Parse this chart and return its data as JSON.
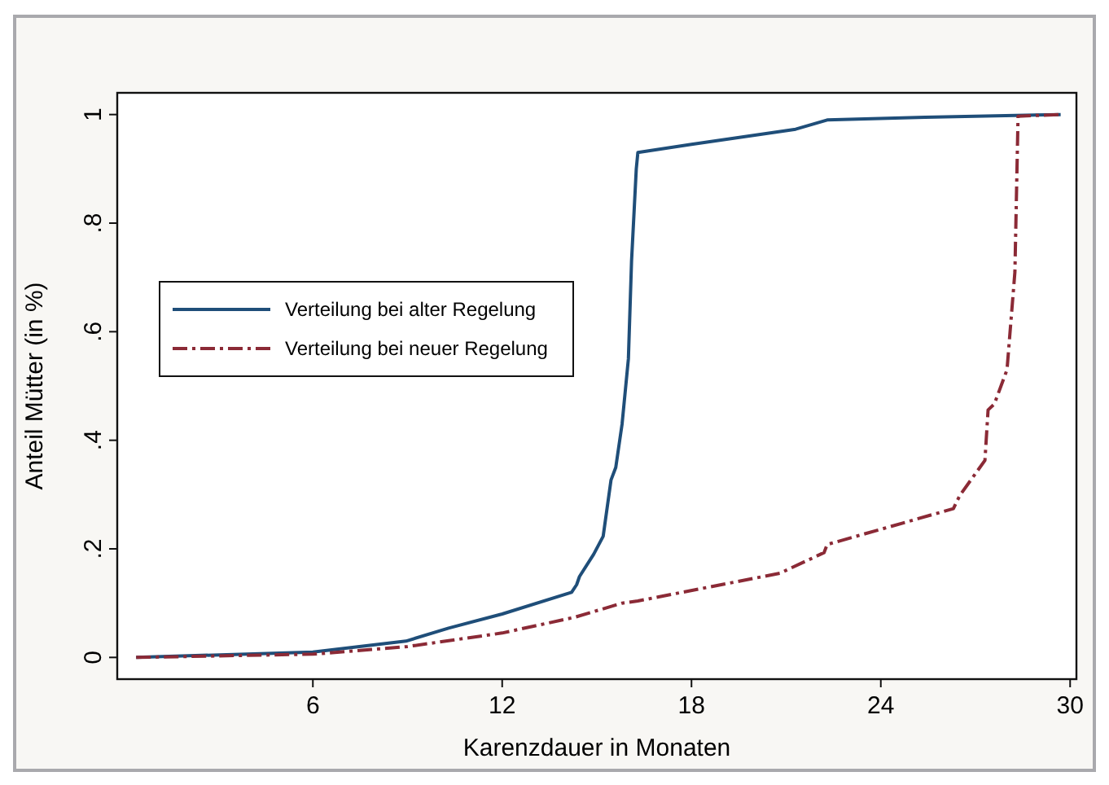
{
  "chart_data": {
    "type": "line",
    "xlabel": "Karenzdauer in Monaten",
    "ylabel": "Anteil Mütter (in %)",
    "xlim": [
      -0.2,
      30.2
    ],
    "xticks": [
      6,
      12,
      18,
      24,
      30
    ],
    "ylim": [
      -0.04,
      1.04
    ],
    "yticks": [
      0,
      {
        "value": 0.2,
        "label": ".2"
      },
      {
        "value": 0.4,
        "label": ".4"
      },
      {
        "value": 0.6,
        "label": ".6"
      },
      {
        "value": 0.8,
        "label": ".8"
      },
      1
    ],
    "grid": false,
    "legend": "left",
    "marker": "none",
    "series": [
      {
        "name": "Verteilung bei alter Regelung",
        "color": "#1f4e79",
        "line_style": "solid",
        "x": [
          0.4,
          6,
          8.95,
          10.3,
          12,
          14.2,
          14.36,
          14.45,
          14.9,
          15.2,
          15.45,
          15.6,
          15.8,
          16.0,
          16.1,
          16.25,
          16.3,
          18,
          21.3,
          22.3,
          25.4,
          29.7
        ],
        "values": [
          0,
          0.01,
          0.03,
          0.054,
          0.08,
          0.12,
          0.134,
          0.149,
          0.19,
          0.223,
          0.327,
          0.35,
          0.43,
          0.55,
          0.73,
          0.9,
          0.93,
          0.945,
          0.973,
          0.99,
          0.995,
          1
        ]
      },
      {
        "name": "Verteilung bei neuer Regelung",
        "color": "#8b2a36",
        "line_style": "dashed",
        "x": [
          0.4,
          6,
          9,
          12,
          14.3,
          15.8,
          16.3,
          20.8,
          22.2,
          22.3,
          26.3,
          26.5,
          27.3,
          27.4,
          27.6,
          28,
          28.25,
          28.35,
          29.7
        ],
        "values": [
          0,
          0.006,
          0.02,
          0.045,
          0.074,
          0.1,
          0.104,
          0.155,
          0.193,
          0.208,
          0.274,
          0.298,
          0.363,
          0.456,
          0.467,
          0.53,
          0.71,
          0.997,
          1
        ]
      }
    ]
  }
}
